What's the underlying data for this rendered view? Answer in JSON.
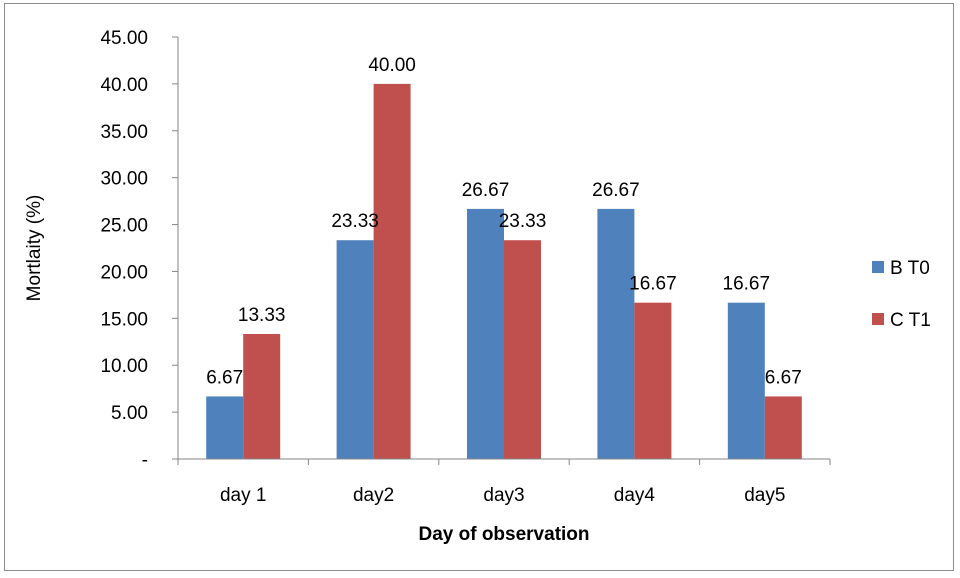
{
  "chart_data": {
    "type": "bar",
    "title": "",
    "xlabel": "Day of observation",
    "ylabel": "Mortlaity (%)",
    "categories": [
      "day 1",
      "day2",
      "day3",
      "day4",
      "day5"
    ],
    "series": [
      {
        "name": "B T0",
        "color": "#4F81BD",
        "values": [
          6.67,
          23.33,
          26.67,
          26.67,
          16.67
        ],
        "labels": [
          "6.67",
          "23.33",
          "26.67",
          "26.67",
          "16.67"
        ]
      },
      {
        "name": "C T1",
        "color": "#C0504D",
        "values": [
          13.33,
          40.0,
          23.33,
          16.67,
          6.67
        ],
        "labels": [
          "13.33",
          "40.00",
          "23.33",
          "16.67",
          "6.67"
        ]
      }
    ],
    "ylim": [
      0,
      45
    ],
    "yticks": [
      0,
      5,
      10,
      15,
      20,
      25,
      30,
      35,
      40,
      45
    ],
    "ytick_labels": [
      "-",
      "5.00",
      "10.00",
      "15.00",
      "20.00",
      "25.00",
      "30.00",
      "35.00",
      "40.00",
      "45.00"
    ],
    "grid": false,
    "legend_position": "right"
  }
}
